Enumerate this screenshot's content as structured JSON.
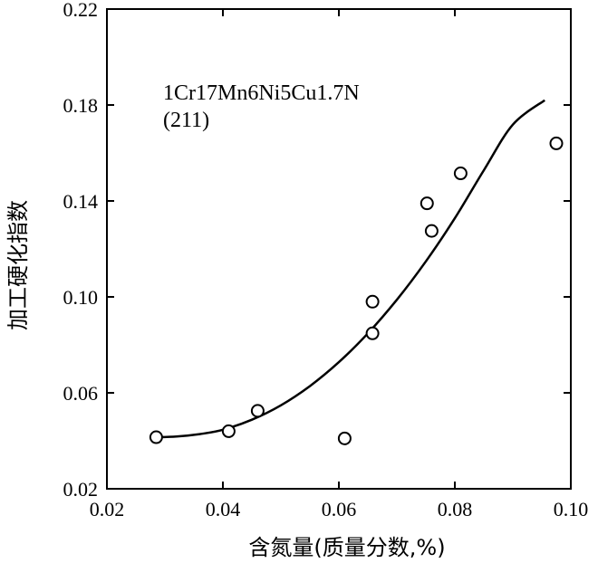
{
  "chart_data": {
    "type": "scatter",
    "title": "",
    "xlabel": "含氮量(质量分数,%)",
    "ylabel": "加工硬化指数",
    "xlim": [
      0.02,
      0.1
    ],
    "ylim": [
      0.02,
      0.22
    ],
    "x_ticks": [
      "0.02",
      "0.04",
      "0.06",
      "0.08",
      "0.10"
    ],
    "y_ticks": [
      "0.02",
      "0.06",
      "0.10",
      "0.14",
      "0.18",
      "0.22"
    ],
    "x_tick_values": [
      0.02,
      0.04,
      0.06,
      0.08,
      0.1
    ],
    "y_tick_values": [
      0.02,
      0.06,
      0.1,
      0.14,
      0.18,
      0.22
    ],
    "grid": false,
    "annotations": [
      "1Cr17Mn6Ni5Cu1.7N",
      "(211)"
    ],
    "series": [
      {
        "marker": "open-circle",
        "points": [
          {
            "x": 0.0285,
            "y": 0.0415
          },
          {
            "x": 0.041,
            "y": 0.044
          },
          {
            "x": 0.046,
            "y": 0.0525
          },
          {
            "x": 0.061,
            "y": 0.041
          },
          {
            "x": 0.0658,
            "y": 0.0848
          },
          {
            "x": 0.0658,
            "y": 0.098
          },
          {
            "x": 0.0752,
            "y": 0.139
          },
          {
            "x": 0.076,
            "y": 0.1275
          },
          {
            "x": 0.081,
            "y": 0.1515
          },
          {
            "x": 0.0975,
            "y": 0.164
          }
        ]
      }
    ],
    "fit_curve": {
      "points": [
        {
          "x": 0.0285,
          "y": 0.0415
        },
        {
          "x": 0.032,
          "y": 0.0418
        },
        {
          "x": 0.036,
          "y": 0.0428
        },
        {
          "x": 0.04,
          "y": 0.0446
        },
        {
          "x": 0.045,
          "y": 0.0488
        },
        {
          "x": 0.05,
          "y": 0.0548
        },
        {
          "x": 0.055,
          "y": 0.0628
        },
        {
          "x": 0.06,
          "y": 0.0728
        },
        {
          "x": 0.065,
          "y": 0.0848
        },
        {
          "x": 0.07,
          "y": 0.0988
        },
        {
          "x": 0.075,
          "y": 0.1148
        },
        {
          "x": 0.08,
          "y": 0.1328
        },
        {
          "x": 0.085,
          "y": 0.1528
        },
        {
          "x": 0.09,
          "y": 0.1718
        },
        {
          "x": 0.0955,
          "y": 0.182
        }
      ]
    }
  }
}
